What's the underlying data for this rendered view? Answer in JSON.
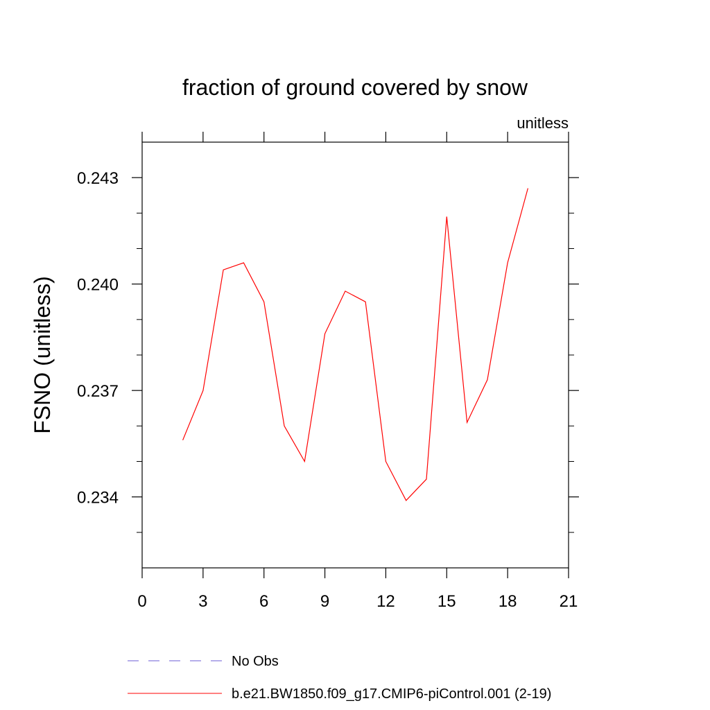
{
  "chart_data": {
    "type": "line",
    "title": "fraction of ground covered by snow",
    "units_label": "unitless",
    "ylabel": "FSNO  (unitless)",
    "xlabel": "",
    "xlim": [
      0,
      21
    ],
    "ylim": [
      0.232,
      0.244
    ],
    "xticks": [
      0,
      3,
      6,
      9,
      12,
      15,
      18,
      21
    ],
    "yticks": [
      0.234,
      0.237,
      0.24,
      0.243
    ],
    "ytick_labels": [
      "0.234",
      "0.237",
      "0.240",
      "0.243"
    ],
    "grid": false,
    "legend_position": "bottom",
    "series": [
      {
        "name": "b.e21.BW1850.f09_g17.CMIP6-piControl.001 (2-19)",
        "color": "#ff0000",
        "style": "solid",
        "x": [
          2,
          3,
          4,
          5,
          6,
          7,
          8,
          9,
          10,
          11,
          12,
          13,
          14,
          15,
          16,
          17,
          18,
          19
        ],
        "values": [
          0.2356,
          0.237,
          0.2404,
          0.2406,
          0.2395,
          0.236,
          0.235,
          0.2386,
          0.2398,
          0.2395,
          0.235,
          0.2339,
          0.2345,
          0.2419,
          0.2361,
          0.2373,
          0.2406,
          0.2427
        ]
      }
    ],
    "legend": [
      {
        "label": "No Obs",
        "color": "#6b5bd6",
        "style": "dashed"
      },
      {
        "label": "b.e21.BW1850.f09_g17.CMIP6-piControl.001 (2-19)",
        "color": "#ff0000",
        "style": "solid"
      }
    ]
  }
}
